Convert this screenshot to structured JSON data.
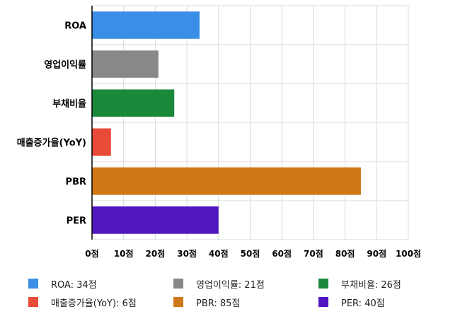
{
  "chart_data": {
    "type": "bar",
    "orientation": "horizontal",
    "categories": [
      "ROA",
      "영업이익률",
      "부채비율",
      "매출증가율(YoY)",
      "PBR",
      "PER"
    ],
    "values": [
      34,
      21,
      26,
      6,
      85,
      40
    ],
    "colors": [
      "#3a8ee6",
      "#888888",
      "#1a8a3a",
      "#ea4a3a",
      "#d07818",
      "#5016c0"
    ],
    "xlim": [
      0,
      100
    ],
    "ticks": [
      0,
      10,
      20,
      30,
      40,
      50,
      60,
      70,
      80,
      90,
      100
    ],
    "tick_labels": [
      "0점",
      "10점",
      "20점",
      "30점",
      "40점",
      "50점",
      "60점",
      "70점",
      "80점",
      "90점",
      "100점"
    ],
    "grid": true,
    "legend_position": "bottom",
    "legend": [
      {
        "label": "ROA: 34점",
        "color": "#3a8ee6"
      },
      {
        "label": "영업이익률: 21점",
        "color": "#888888"
      },
      {
        "label": "부채비율: 26점",
        "color": "#1a8a3a"
      },
      {
        "label": "매출증가율(YoY): 6점",
        "color": "#ea4a3a"
      },
      {
        "label": "PBR: 85점",
        "color": "#d07818"
      },
      {
        "label": "PER: 40점",
        "color": "#5016c0"
      }
    ]
  }
}
